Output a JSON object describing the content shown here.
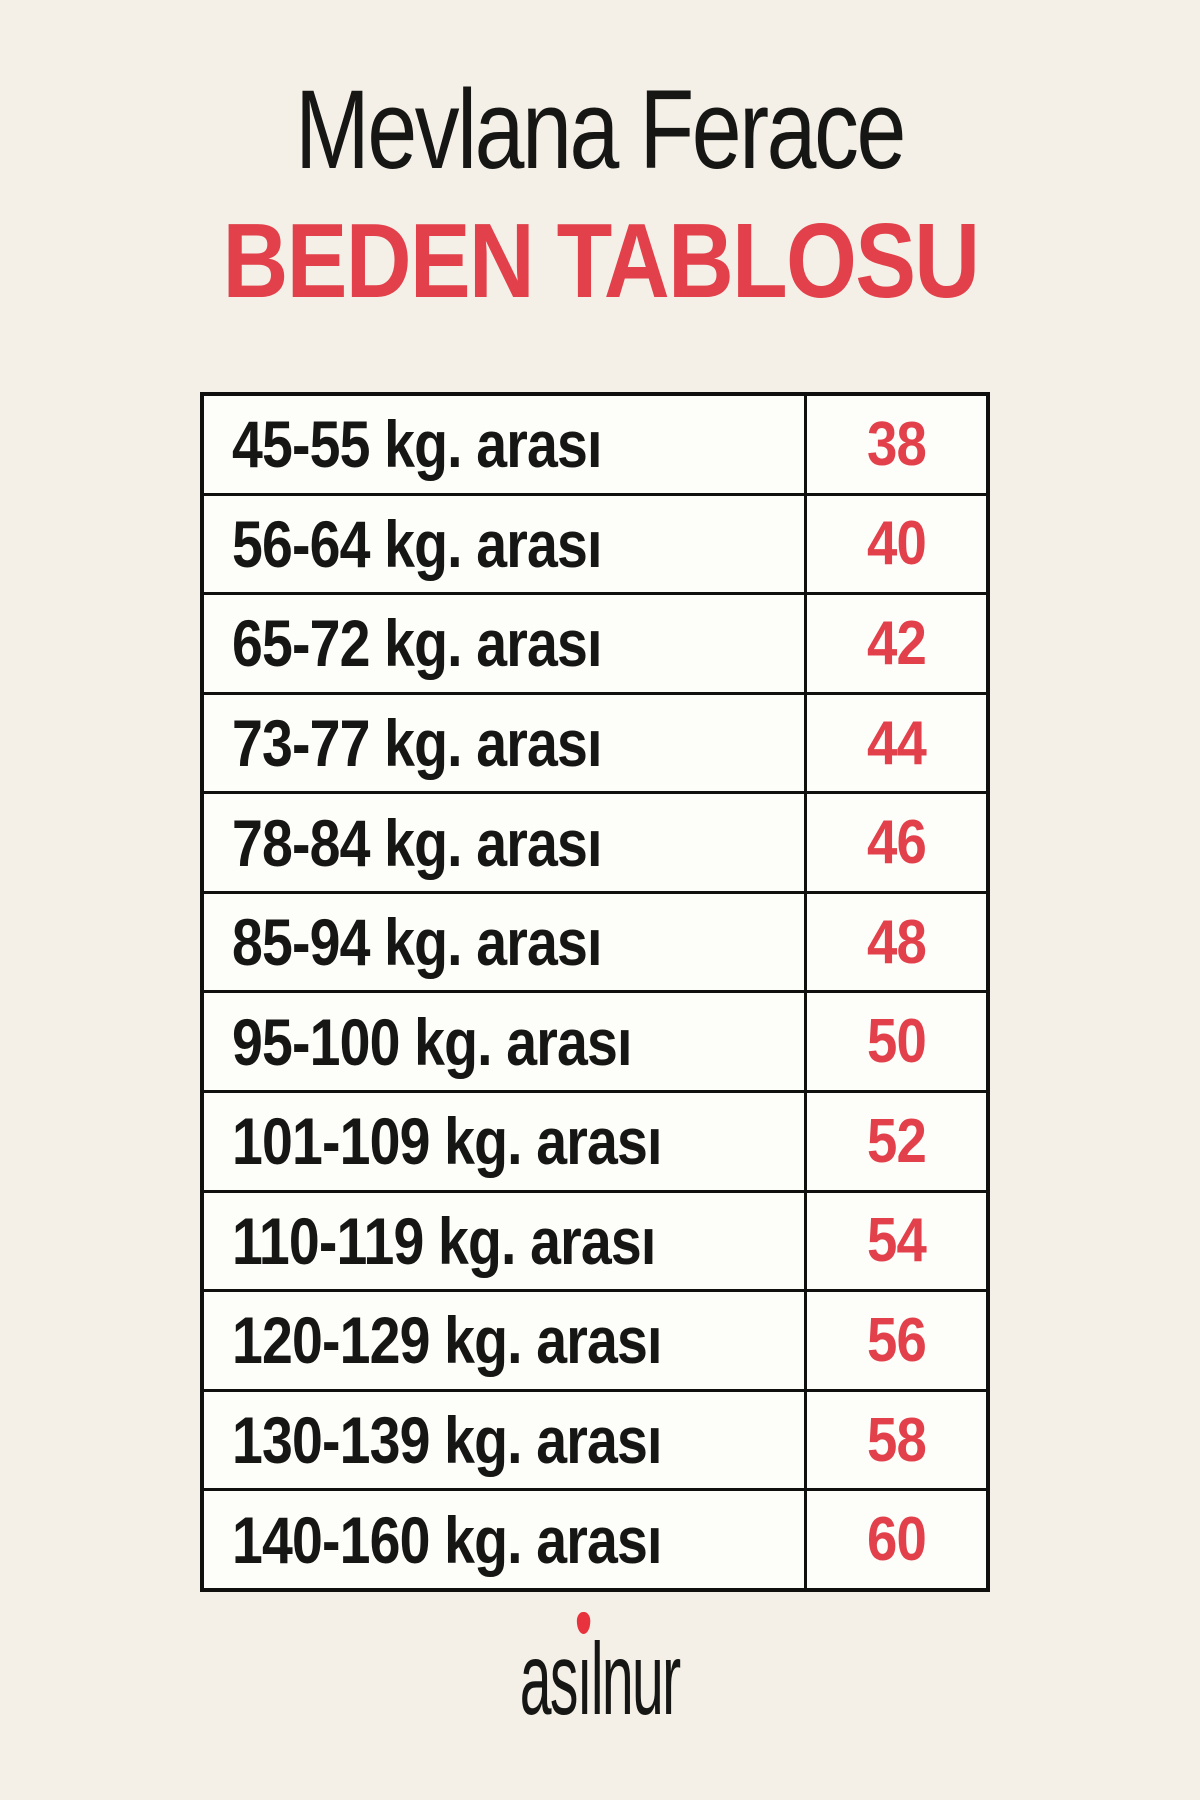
{
  "theme": {
    "background": "#f4f0e7",
    "accent_red": "#e2414b",
    "text_black": "#161615",
    "border_black": "#10100e",
    "cell_white": "#fdfdfa",
    "tulip_red": "#e8323e"
  },
  "header": {
    "title": "Mevlana Ferace",
    "subtitle": "BEDEN TABLOSU"
  },
  "size_table": {
    "rows": [
      {
        "weight": "45-55 kg. arası",
        "size": "38"
      },
      {
        "weight": "56-64 kg. arası",
        "size": "40"
      },
      {
        "weight": "65-72 kg. arası",
        "size": "42"
      },
      {
        "weight": "73-77 kg. arası",
        "size": "44"
      },
      {
        "weight": "78-84 kg. arası",
        "size": "46"
      },
      {
        "weight": "85-94 kg. arası",
        "size": "48"
      },
      {
        "weight": "95-100 kg. arası",
        "size": "50"
      },
      {
        "weight": "101-109 kg. arası",
        "size": "52"
      },
      {
        "weight": "110-119 kg. arası",
        "size": "54"
      },
      {
        "weight": "120-129 kg. arası",
        "size": "56"
      },
      {
        "weight": "130-139 kg. arası",
        "size": "58"
      },
      {
        "weight": "140-160 kg. arası",
        "size": "60"
      }
    ]
  },
  "footer": {
    "brand": "asilnur",
    "brand_prefix": "as",
    "brand_dotless_i": "ı",
    "brand_suffix": "lnur"
  },
  "chart_data": {
    "type": "table",
    "title": "Mevlana Ferace BEDEN TABLOSU",
    "columns": [
      "weight-range-kg",
      "beden-size"
    ],
    "rows": [
      [
        "45-55 kg. arası",
        38
      ],
      [
        "56-64 kg. arası",
        40
      ],
      [
        "65-72 kg. arası",
        42
      ],
      [
        "73-77 kg. arası",
        44
      ],
      [
        "78-84 kg. arası",
        46
      ],
      [
        "85-94 kg. arası",
        48
      ],
      [
        "95-100 kg. arası",
        50
      ],
      [
        "101-109 kg. arası",
        52
      ],
      [
        "110-119 kg. arası",
        54
      ],
      [
        "120-129 kg. arası",
        56
      ],
      [
        "130-139 kg. arası",
        58
      ],
      [
        "140-160 kg. arası",
        60
      ]
    ],
    "layout": {
      "header_row": false,
      "value_column_color": "#e2414b",
      "grid": true
    }
  }
}
